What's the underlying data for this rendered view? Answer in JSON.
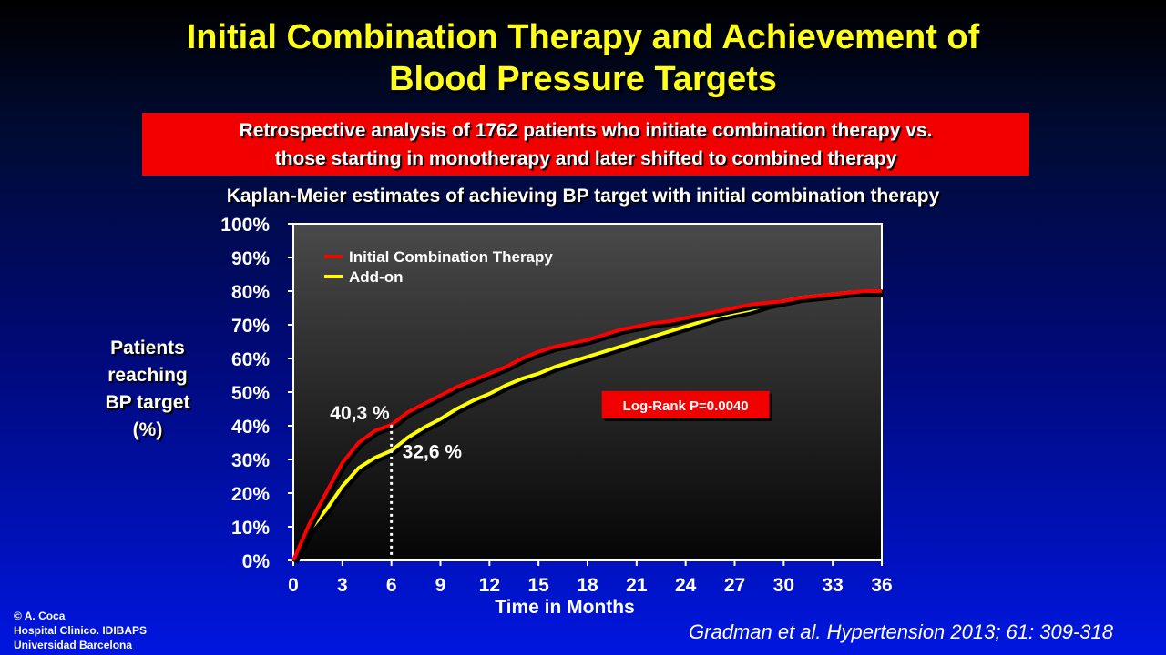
{
  "slide": {
    "title_line1": "Initial Combination Therapy and Achievement of",
    "title_line2": "Blood Pressure Targets",
    "box_line1": "Retrospective analysis of 1762 patients who initiate combination therapy vs.",
    "box_line2": "those starting in monotherapy and later shifted to combined therapy",
    "subtitle": "Kaplan-Meier estimates of achieving BP target with initial combination therapy",
    "ylabel_lines": [
      "Patients",
      "reaching",
      "BP target",
      "(%)"
    ],
    "footer_lines": [
      "© A. Coca",
      "Hospital Clinico. IDIBAPS",
      "Universidad Barcelona"
    ],
    "citation": "Gradman et al. Hypertension 2013; 61: 309-318"
  },
  "colors": {
    "title": "#ffff1a",
    "box": "#f20000",
    "initial_series": "#ff0000",
    "addon_series": "#ffff00"
  },
  "chart_data": {
    "type": "line",
    "xlabel": "Time in Months",
    "xlim": [
      0,
      36
    ],
    "ylim": [
      0,
      100
    ],
    "xticks": [
      "0",
      "3",
      "6",
      "9",
      "12",
      "15",
      "18",
      "21",
      "24",
      "27",
      "30",
      "33",
      "36"
    ],
    "yticks": [
      "0%",
      "10%",
      "20%",
      "30%",
      "40%",
      "50%",
      "60%",
      "70%",
      "80%",
      "90%",
      "100%"
    ],
    "grid": false,
    "legend": "top-left",
    "series": [
      {
        "name": "Initial Combination Therapy",
        "color": "#ff0000",
        "x": [
          0,
          1,
          2,
          3,
          4,
          5,
          6,
          7,
          8,
          9,
          10,
          11,
          12,
          13,
          14,
          15,
          16,
          17,
          18,
          19,
          20,
          21,
          22,
          23,
          24,
          25,
          26,
          27,
          28,
          29,
          30,
          31,
          32,
          33,
          34,
          35,
          36
        ],
        "y": [
          0,
          11,
          20,
          29,
          35,
          38.5,
          40.3,
          44,
          46.5,
          49,
          51.5,
          53.5,
          55.5,
          57.5,
          60,
          62,
          63.5,
          64.5,
          65.5,
          67,
          68.5,
          69.5,
          70.5,
          71,
          72,
          73,
          74,
          75,
          76,
          76.5,
          77,
          78,
          78.5,
          79,
          79.5,
          80,
          80
        ]
      },
      {
        "name": "Add-on",
        "color": "#ffff00",
        "x": [
          0,
          1,
          2,
          3,
          4,
          5,
          6,
          7,
          8,
          9,
          10,
          11,
          12,
          13,
          14,
          15,
          16,
          17,
          18,
          19,
          20,
          21,
          22,
          23,
          24,
          25,
          26,
          27,
          28,
          29,
          30,
          31,
          32,
          33,
          34,
          35,
          36
        ],
        "y": [
          0,
          9,
          15,
          22,
          27.5,
          30.5,
          32.6,
          36.5,
          39.5,
          42,
          45,
          47.5,
          49.5,
          52,
          54,
          55.5,
          57.5,
          59,
          60.5,
          62,
          63.5,
          65,
          66.5,
          68,
          69.5,
          71,
          72.5,
          73.5,
          74.5,
          76,
          77,
          78,
          78.5,
          79,
          79.5,
          79.8,
          79.5
        ]
      }
    ],
    "annotations": [
      {
        "text": "40,3 %",
        "x": 6,
        "y": 40.3
      },
      {
        "text": "32,6 %",
        "x": 6,
        "y": 32.6
      },
      {
        "text": "Log-Rank P=0.0040",
        "x": 24,
        "y": 46
      }
    ]
  }
}
